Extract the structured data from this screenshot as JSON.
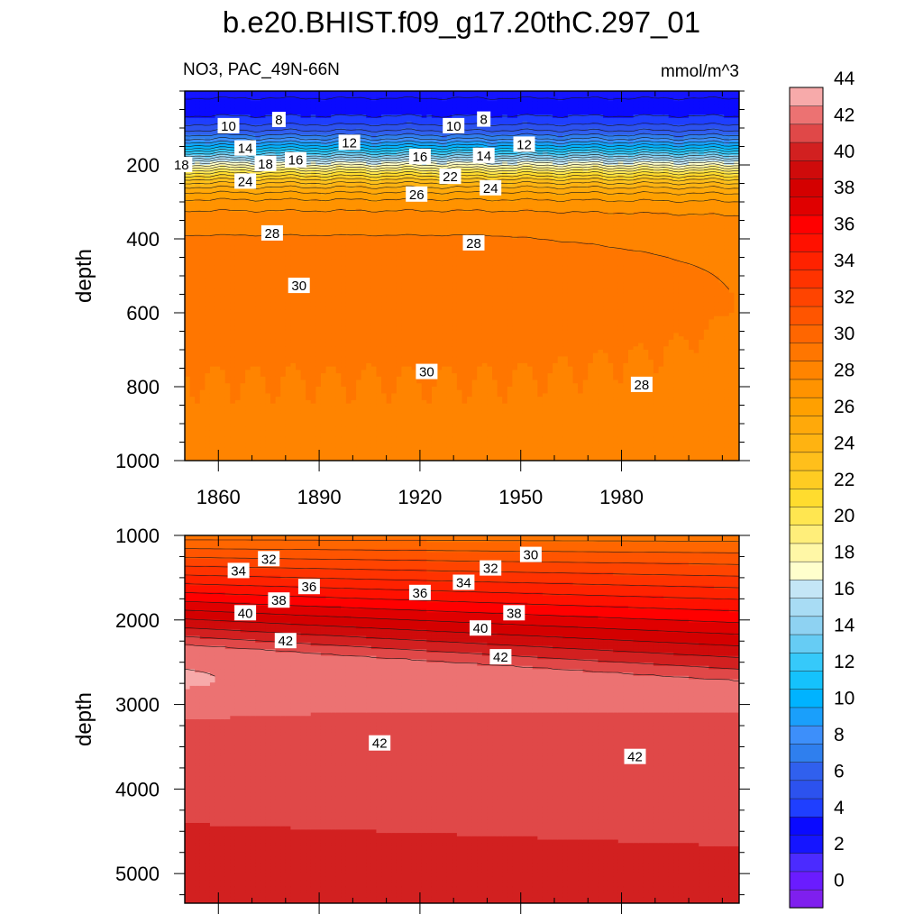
{
  "chart_data": {
    "type": "contour",
    "title": "b.e20.BHIST.f09_g17.20thC.297_01",
    "variable_label": "NO3, PAC_49N-66N",
    "units_label": "mmol/m^3",
    "colors": {
      "bands": [
        "#7f1fee",
        "#6a1cff",
        "#4b2bff",
        "#1515ff",
        "#0a0aff",
        "#1f3fff",
        "#2c52ee",
        "#3060ee",
        "#2f7fee",
        "#3d8ffa",
        "#1a9ffb",
        "#00b3ff",
        "#15c2fc",
        "#36c9fa",
        "#66ccf4",
        "#8ed2f2",
        "#a8dcf4",
        "#c4e6f6",
        "#ffffcc",
        "#fff7a6",
        "#ffee7a",
        "#ffe650",
        "#ffdc2e",
        "#ffcc22",
        "#ffbf1b",
        "#ffb311",
        "#ffa90a",
        "#ffa000",
        "#ff9300",
        "#ff8400",
        "#ff7600",
        "#ff6600",
        "#ff5500",
        "#ff4400",
        "#ff3300",
        "#ff2200",
        "#ff1100",
        "#ff0000",
        "#e00000",
        "#d40000",
        "#cf0b0b",
        "#d22020",
        "#e04848",
        "#ec7272",
        "#f7aaaa"
      ],
      "axis": "#000000",
      "contour_line": "#1a1a1a"
    },
    "colorbar": {
      "min": -1,
      "max": 46,
      "step": 1,
      "tick_labels": [
        0,
        2,
        4,
        6,
        8,
        10,
        12,
        14,
        16,
        18,
        20,
        22,
        24,
        26,
        28,
        30,
        32,
        34,
        36,
        38,
        40,
        42,
        44
      ]
    },
    "panels": [
      {
        "name": "upper",
        "ylabel": "depth",
        "xlim": [
          1850,
          2015
        ],
        "ylim": [
          0,
          1000
        ],
        "x_ticks": [
          1860,
          1890,
          1920,
          1950,
          1980
        ],
        "y_ticks": [
          200,
          400,
          600,
          800,
          1000
        ],
        "contour_labels": [
          {
            "value": 10,
            "year": 1863,
            "depth": 95
          },
          {
            "value": 8,
            "year": 1878,
            "depth": 78
          },
          {
            "value": 12,
            "year": 1899,
            "depth": 140
          },
          {
            "value": 14,
            "year": 1868,
            "depth": 155
          },
          {
            "value": 18,
            "year": 1849,
            "depth": 200
          },
          {
            "value": 18,
            "year": 1874,
            "depth": 197
          },
          {
            "value": 16,
            "year": 1883,
            "depth": 187
          },
          {
            "value": 10,
            "year": 1930,
            "depth": 95
          },
          {
            "value": 8,
            "year": 1939,
            "depth": 77
          },
          {
            "value": 12,
            "year": 1951,
            "depth": 145
          },
          {
            "value": 16,
            "year": 1920,
            "depth": 178
          },
          {
            "value": 14,
            "year": 1939,
            "depth": 175
          },
          {
            "value": 22,
            "year": 1929,
            "depth": 232
          },
          {
            "value": 24,
            "year": 1868,
            "depth": 245
          },
          {
            "value": 24,
            "year": 1941,
            "depth": 263
          },
          {
            "value": 26,
            "year": 1919,
            "depth": 280
          },
          {
            "value": 28,
            "year": 1876,
            "depth": 385
          },
          {
            "value": 28,
            "year": 1936,
            "depth": 412
          },
          {
            "value": 30,
            "year": 1884,
            "depth": 527
          },
          {
            "value": 30,
            "year": 1922,
            "depth": 760
          },
          {
            "value": 28,
            "year": 1986,
            "depth": 795
          }
        ]
      },
      {
        "name": "lower",
        "ylabel": "depth",
        "xlim": [
          1850,
          2015
        ],
        "ylim": [
          1000,
          5350
        ],
        "x_ticks": [
          1860,
          1890,
          1920,
          1950,
          1980
        ],
        "y_ticks": [
          1000,
          2000,
          3000,
          4000,
          5000
        ],
        "contour_labels": [
          {
            "value": 32,
            "year": 1875,
            "depth": 1280
          },
          {
            "value": 30,
            "year": 1953,
            "depth": 1230
          },
          {
            "value": 34,
            "year": 1866,
            "depth": 1420
          },
          {
            "value": 32,
            "year": 1941,
            "depth": 1390
          },
          {
            "value": 36,
            "year": 1887,
            "depth": 1610
          },
          {
            "value": 34,
            "year": 1933,
            "depth": 1560
          },
          {
            "value": 36,
            "year": 1920,
            "depth": 1680
          },
          {
            "value": 38,
            "year": 1878,
            "depth": 1770
          },
          {
            "value": 38,
            "year": 1948,
            "depth": 1920
          },
          {
            "value": 40,
            "year": 1868,
            "depth": 1920
          },
          {
            "value": 40,
            "year": 1938,
            "depth": 2100
          },
          {
            "value": 42,
            "year": 1880,
            "depth": 2250
          },
          {
            "value": 42,
            "year": 1944,
            "depth": 2440
          },
          {
            "value": 42,
            "year": 1908,
            "depth": 3460
          },
          {
            "value": 42,
            "year": 1984,
            "depth": 3620
          }
        ]
      }
    ]
  }
}
